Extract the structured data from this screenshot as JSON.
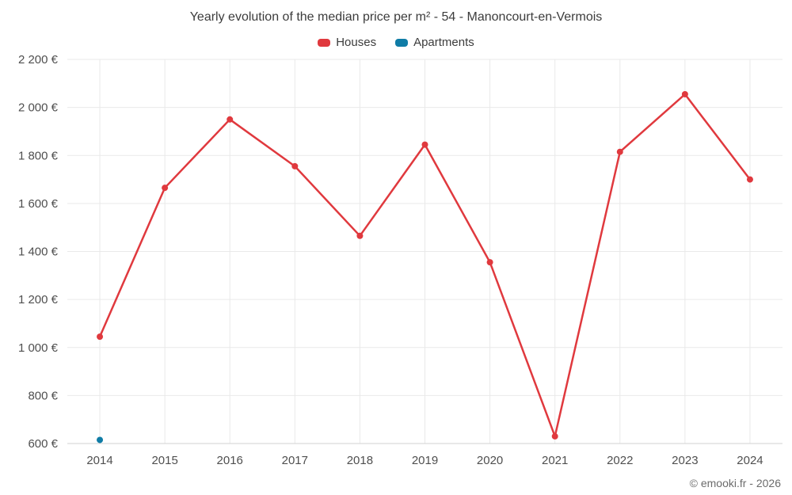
{
  "footer": "© emooki.fr - 2026",
  "legend": [
    {
      "label": "Houses",
      "color": "#e0393e"
    },
    {
      "label": "Apartments",
      "color": "#0f7ca6"
    }
  ],
  "chart_data": {
    "type": "line",
    "title": "Yearly evolution of the median price per m² - 54 - Manoncourt-en-Vermois",
    "xlabel": "",
    "ylabel": "",
    "categories": [
      "2014",
      "2015",
      "2016",
      "2017",
      "2018",
      "2019",
      "2020",
      "2021",
      "2022",
      "2023",
      "2024"
    ],
    "series": [
      {
        "name": "Houses",
        "color": "#e0393e",
        "values": [
          1045,
          1665,
          1950,
          1755,
          1465,
          1845,
          1355,
          630,
          1815,
          2055,
          1700
        ]
      },
      {
        "name": "Apartments",
        "color": "#0f7ca6",
        "values": [
          615,
          null,
          null,
          null,
          null,
          null,
          null,
          null,
          null,
          null,
          null
        ]
      }
    ],
    "ylim": [
      600,
      2200
    ],
    "ytick_step": 200,
    "ytick_labels": [
      "600 €",
      "800 €",
      "1 000 €",
      "1 200 €",
      "1 400 €",
      "1 600 €",
      "1 800 €",
      "2 000 €",
      "2 200 €"
    ],
    "grid": true,
    "legend_position": "top"
  }
}
